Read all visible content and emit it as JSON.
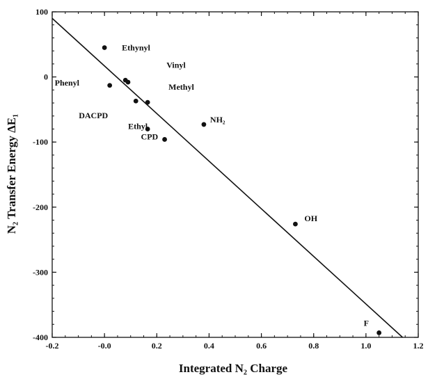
{
  "chart_data": {
    "type": "scatter",
    "xlabel": "Integrated N₂ Charge",
    "ylabel": "N₂ Transfer Energy ΔE₁",
    "xlim": [
      -0.2,
      1.2
    ],
    "ylim": [
      -400,
      100
    ],
    "x_ticks": [
      "-0.2",
      "-0.0",
      "0.2",
      "0.4",
      "0.6",
      "0.8",
      "1.0",
      "1.2"
    ],
    "y_ticks": [
      "100",
      "0",
      "-100",
      "-200",
      "-300",
      "-400"
    ],
    "grid": false,
    "points": [
      {
        "label": "Ethynyl",
        "x": 0.0,
        "y": 45
      },
      {
        "label": "Phenyl",
        "x": 0.02,
        "y": -13
      },
      {
        "label": "Vinyl",
        "x": 0.08,
        "y": -5
      },
      {
        "label": "",
        "x": 0.09,
        "y": -8
      },
      {
        "label": "DACPD",
        "x": 0.12,
        "y": -37
      },
      {
        "label": "Methyl",
        "x": 0.165,
        "y": -39
      },
      {
        "label": "Ethyl",
        "x": 0.165,
        "y": -80
      },
      {
        "label": "CPD",
        "x": 0.23,
        "y": -96
      },
      {
        "label": "NH₂",
        "x": 0.38,
        "y": -73
      },
      {
        "label": "OH",
        "x": 0.73,
        "y": -226
      },
      {
        "label": "F",
        "x": 1.05,
        "y": -393
      }
    ],
    "fit_line": {
      "x": [
        -0.2,
        1.14
      ],
      "y": [
        90,
        -400
      ]
    }
  }
}
